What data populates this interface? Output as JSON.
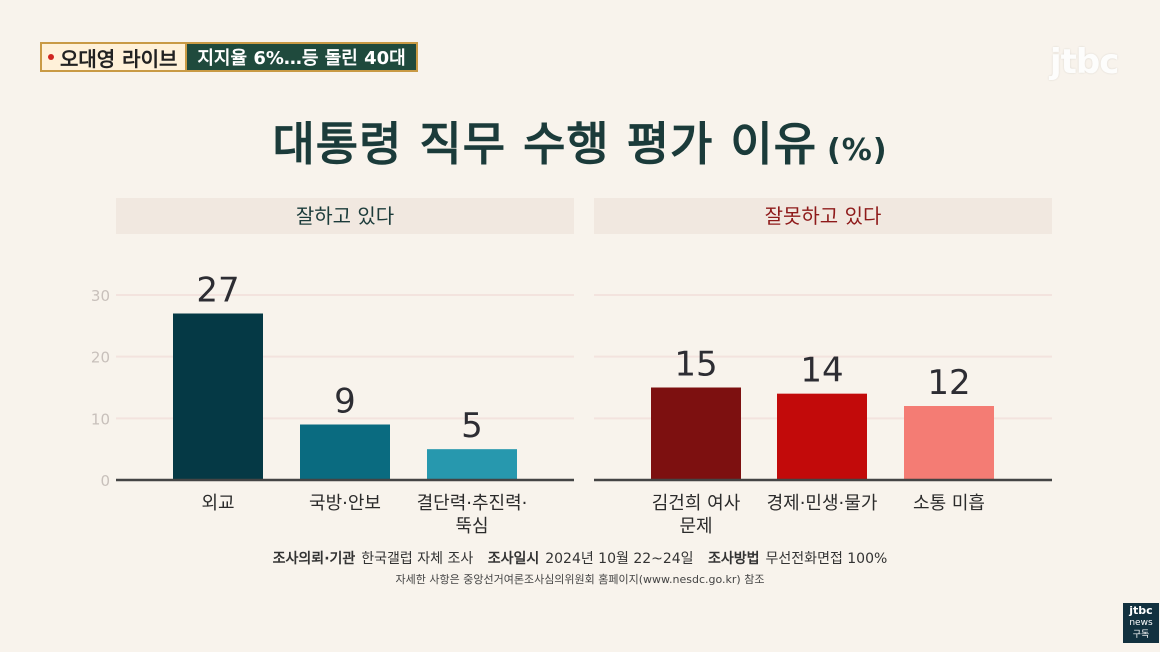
{
  "banner": {
    "show_name": "오대영 라이브",
    "topic": "지지율 6%…등 돌린 40대"
  },
  "broadcaster": "jtbc",
  "corner_logo": {
    "line1": "jtbc",
    "line2": "news",
    "line3": "구독"
  },
  "title": "대통령 직무 수행 평가 이유",
  "title_unit": "(%)",
  "panels": {
    "good_label": "잘하고 있다",
    "bad_label": "잘못하고 있다"
  },
  "footer": {
    "agency_label": "조사의뢰·기관",
    "agency_value": "한국갤럽 자체 조사",
    "date_label": "조사일시",
    "date_value": "2024년 10월 22~24일",
    "method_label": "조사방법",
    "method_value": "무선전화면접 100%",
    "note": "자세한 사항은 중앙선거여론조사심의위원회 홈페이지(www.nesdc.go.kr) 참조"
  },
  "colors": {
    "good": [
      "#053945",
      "#0a6b80",
      "#2798ae"
    ],
    "bad": [
      "#7d1010",
      "#c20a0a",
      "#f47c74"
    ],
    "axis": "#444444",
    "grid": "#f3e3de"
  },
  "chart_data": [
    {
      "type": "bar",
      "title": "잘하고 있다",
      "categories": [
        [
          "외교"
        ],
        [
          "국방·안보"
        ],
        [
          "결단력·추진력·",
          "뚝심"
        ]
      ],
      "values": [
        27,
        9,
        5
      ],
      "ylim": [
        0,
        30
      ],
      "yticks": [
        0,
        10,
        20,
        30
      ],
      "grid": true
    },
    {
      "type": "bar",
      "title": "잘못하고 있다",
      "categories": [
        [
          "김건희 여사",
          "문제"
        ],
        [
          "경제·민생·물가"
        ],
        [
          "소통 미흡"
        ]
      ],
      "values": [
        15,
        14,
        12
      ],
      "ylim": [
        0,
        30
      ],
      "grid": true
    }
  ]
}
